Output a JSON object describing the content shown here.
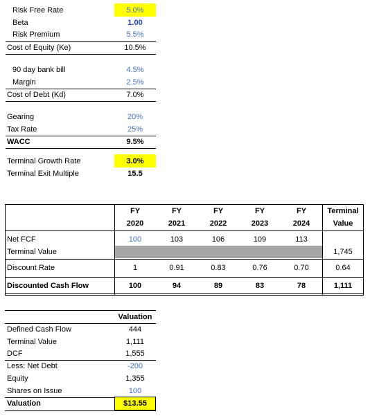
{
  "inputs": [
    {
      "label": "Risk Free Rate",
      "value": "5.0%"
    },
    {
      "label": "Beta",
      "value": "1.00"
    },
    {
      "label": "Risk Premium",
      "value": "5.5%"
    },
    {
      "label": "Cost of Equity (Ke)",
      "value": "10.5%"
    },
    {
      "label": "90 day bank bill",
      "value": "4.5%"
    },
    {
      "label": "Margin",
      "value": "2.5%"
    },
    {
      "label": "Cost of Debt (Kd)",
      "value": "7.0%"
    },
    {
      "label": "Gearing",
      "value": "20%"
    },
    {
      "label": "Tax Rate",
      "value": "25%"
    },
    {
      "label": "WACC",
      "value": "9.5%"
    },
    {
      "label": "Terminal Growth Rate",
      "value": "3.0%"
    },
    {
      "label": "Terminal Exit Multiple",
      "value": "15.5"
    }
  ],
  "cash_flow_table": {
    "columns": [
      {
        "top": "FY",
        "bottom": "2020"
      },
      {
        "top": "FY",
        "bottom": "2021"
      },
      {
        "top": "FY",
        "bottom": "2022"
      },
      {
        "top": "FY",
        "bottom": "2023"
      },
      {
        "top": "FY",
        "bottom": "2024"
      },
      {
        "top": "Terminal",
        "bottom": "Value"
      }
    ],
    "rows": [
      {
        "label": "Net FCF",
        "cells": [
          "100",
          "103",
          "106",
          "109",
          "113",
          null
        ]
      },
      {
        "label": "Terminal Value",
        "cells": [
          null,
          null,
          null,
          null,
          null,
          "1,745"
        ]
      },
      {
        "label": "Discount Rate",
        "cells": [
          "1",
          "0.91",
          "0.83",
          "0.76",
          "0.70",
          "0.64"
        ]
      },
      {
        "label": "Discounted Cash Flow",
        "cells": [
          "100",
          "94",
          "89",
          "83",
          "78",
          "1,111"
        ]
      }
    ]
  },
  "valuation_table": {
    "header": "Valuation",
    "rows": [
      {
        "label": "Defined Cash Flow",
        "value": "444"
      },
      {
        "label": "Terminal Value",
        "value": "1,111"
      },
      {
        "label": "DCF",
        "value": "1,555"
      },
      {
        "label": "Less: Net Debt",
        "value": "-200"
      },
      {
        "label": "Equity",
        "value": "1,355"
      },
      {
        "label": "Shares on Issue",
        "value": "100"
      },
      {
        "label": "Valuation",
        "value": "$13.55"
      }
    ]
  }
}
